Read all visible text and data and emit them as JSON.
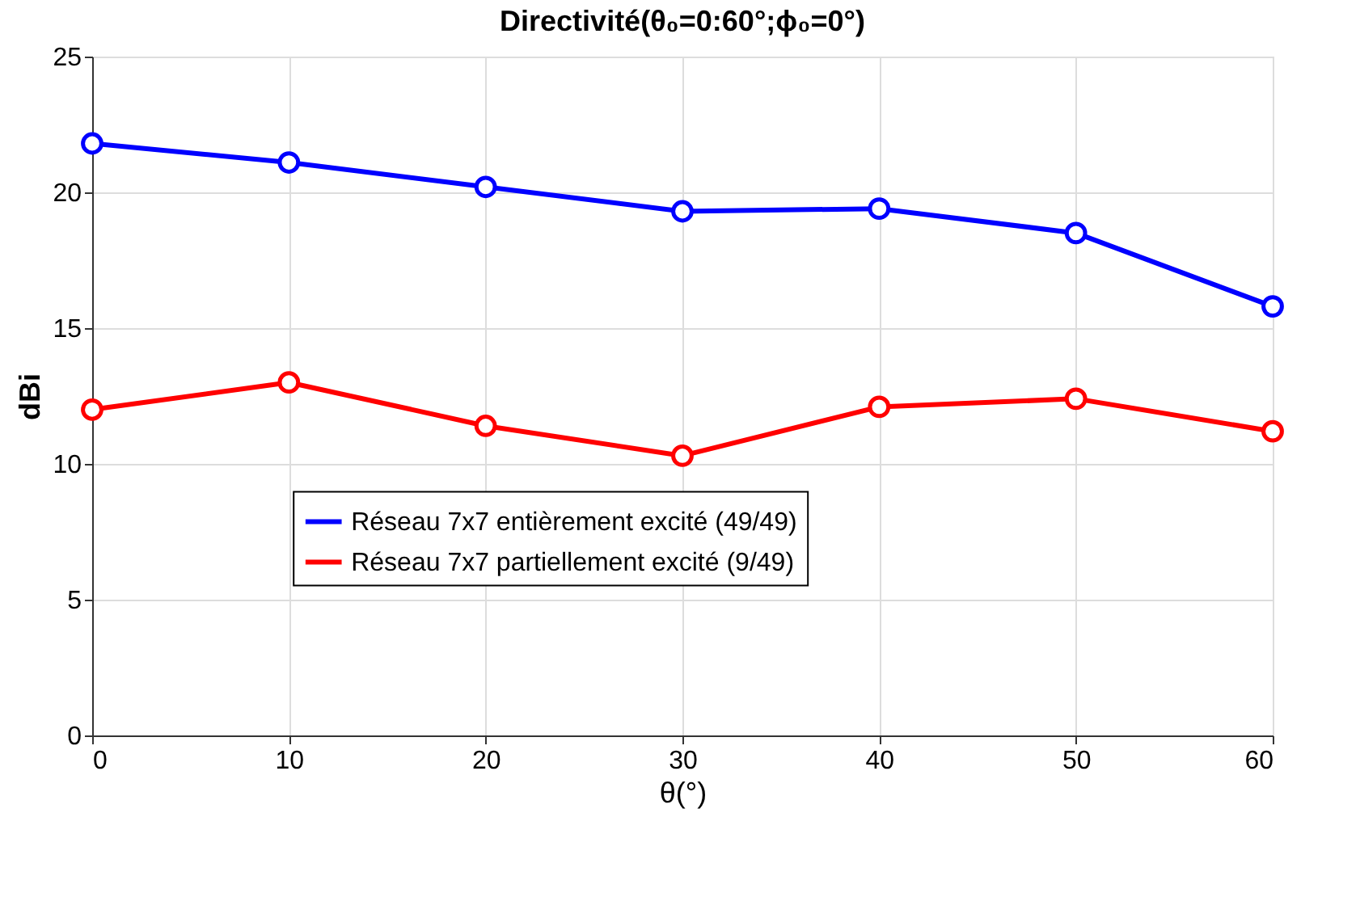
{
  "chart_data": {
    "type": "line",
    "title": "Directivité(θ₀=0:60°;ϕ₀=0°)",
    "xlabel": "θ(°)",
    "ylabel": "dBi",
    "x": [
      0,
      10,
      20,
      30,
      40,
      50,
      60
    ],
    "series": [
      {
        "name": "Réseau 7x7 entièrement excité (49/49)",
        "color": "#0000ff",
        "values": [
          21.8,
          21.1,
          20.2,
          19.3,
          19.4,
          18.5,
          15.8
        ]
      },
      {
        "name": "Réseau 7x7 partiellement excité (9/49)",
        "color": "#ff0000",
        "values": [
          12.0,
          13.0,
          11.4,
          10.3,
          12.1,
          12.4,
          11.2
        ]
      }
    ],
    "xlim": [
      0,
      60
    ],
    "xticks": [
      0,
      10,
      20,
      30,
      40,
      50,
      60
    ],
    "ylim": [
      0,
      25
    ],
    "yticks": [
      0,
      5,
      10,
      15,
      20,
      25
    ],
    "grid": true,
    "legend": "bottom",
    "marker": "circle",
    "line_style": "solid"
  }
}
